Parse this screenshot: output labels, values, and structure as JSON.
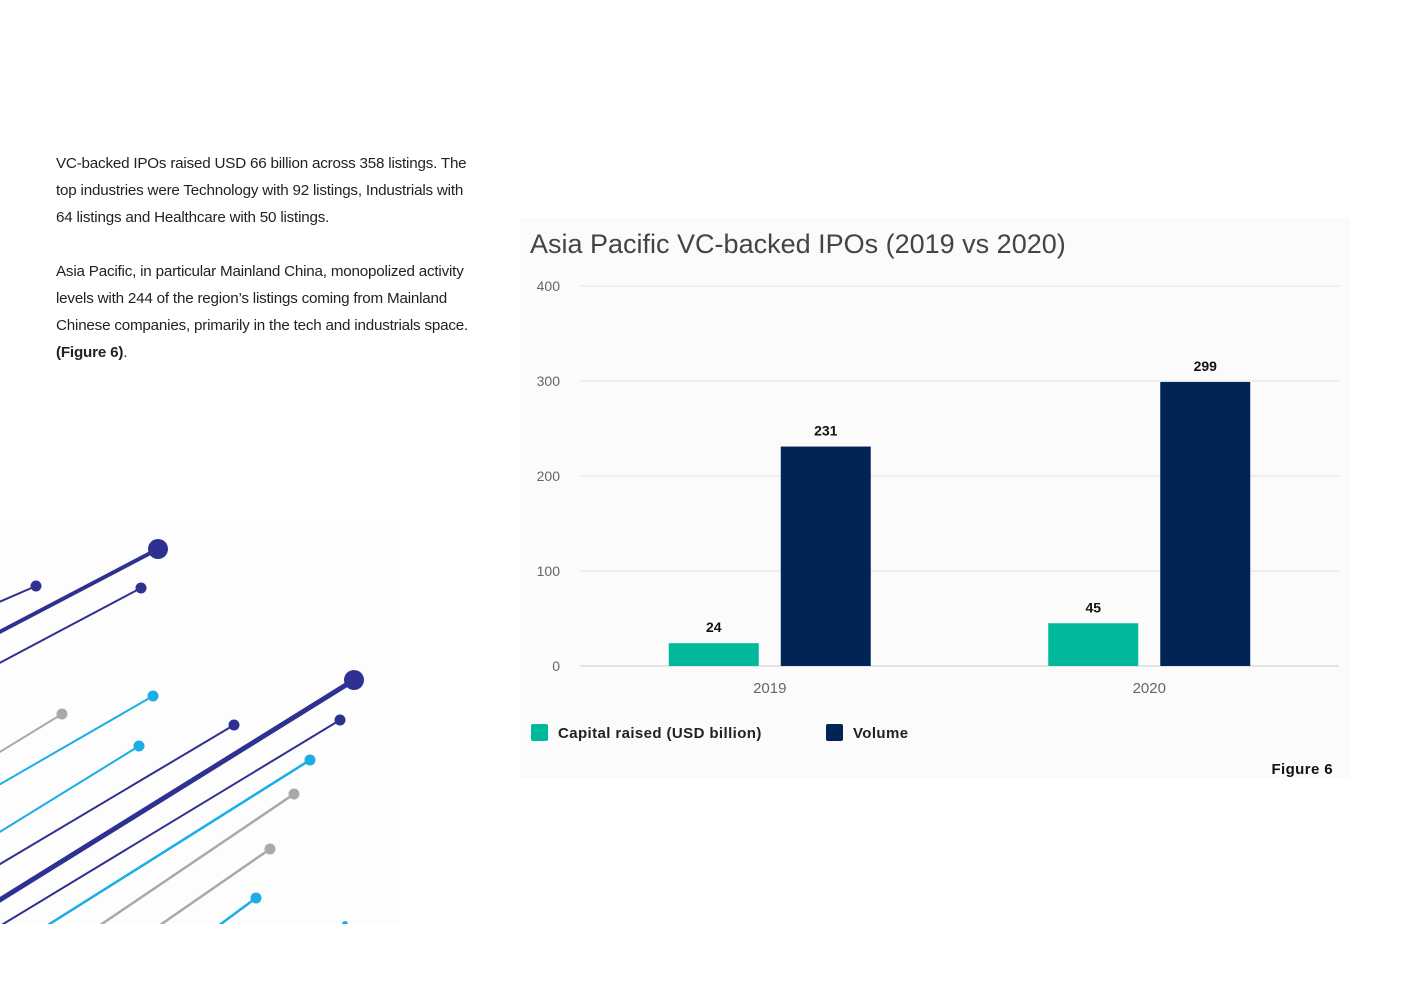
{
  "intro": {
    "paragraph1": "VC-backed IPOs raised USD 66 billion across 358 listings. The top industries were Technology with 92 listings, Industrials with 64 listings and Healthcare with 50 listings.",
    "paragraph2_text": "Asia Pacific, in particular Mainland China, monopolized activity levels with 244 of the region’s listings coming from Mainland Chinese companies, primarily in the tech and industrials space. ",
    "paragraph2_ref": "(Figure 6)",
    "paragraph2_end": "."
  },
  "figure_label": "Figure 6",
  "colors": {
    "capital": "#00B89C",
    "volume": "#002554",
    "grid": "#e3e3e3",
    "axis_text": "#666666",
    "deco_navy": "#2e3192",
    "deco_cyan": "#1aaee5",
    "deco_gray": "#a7a9ac"
  },
  "chart_data": {
    "type": "bar",
    "title": "Asia Pacific VC-backed IPOs (2019 vs 2020)",
    "categories": [
      "2019",
      "2020"
    ],
    "series": [
      {
        "name": "Capital raised (USD billion)",
        "values": [
          24,
          45
        ]
      },
      {
        "name": "Volume",
        "values": [
          231,
          299
        ]
      }
    ],
    "ylim": [
      0,
      400
    ],
    "yticks": [
      0,
      100,
      200,
      300,
      400
    ],
    "xlabel": "",
    "ylabel": "",
    "grid": true,
    "legend": "bottom-left",
    "data_labels": true
  }
}
